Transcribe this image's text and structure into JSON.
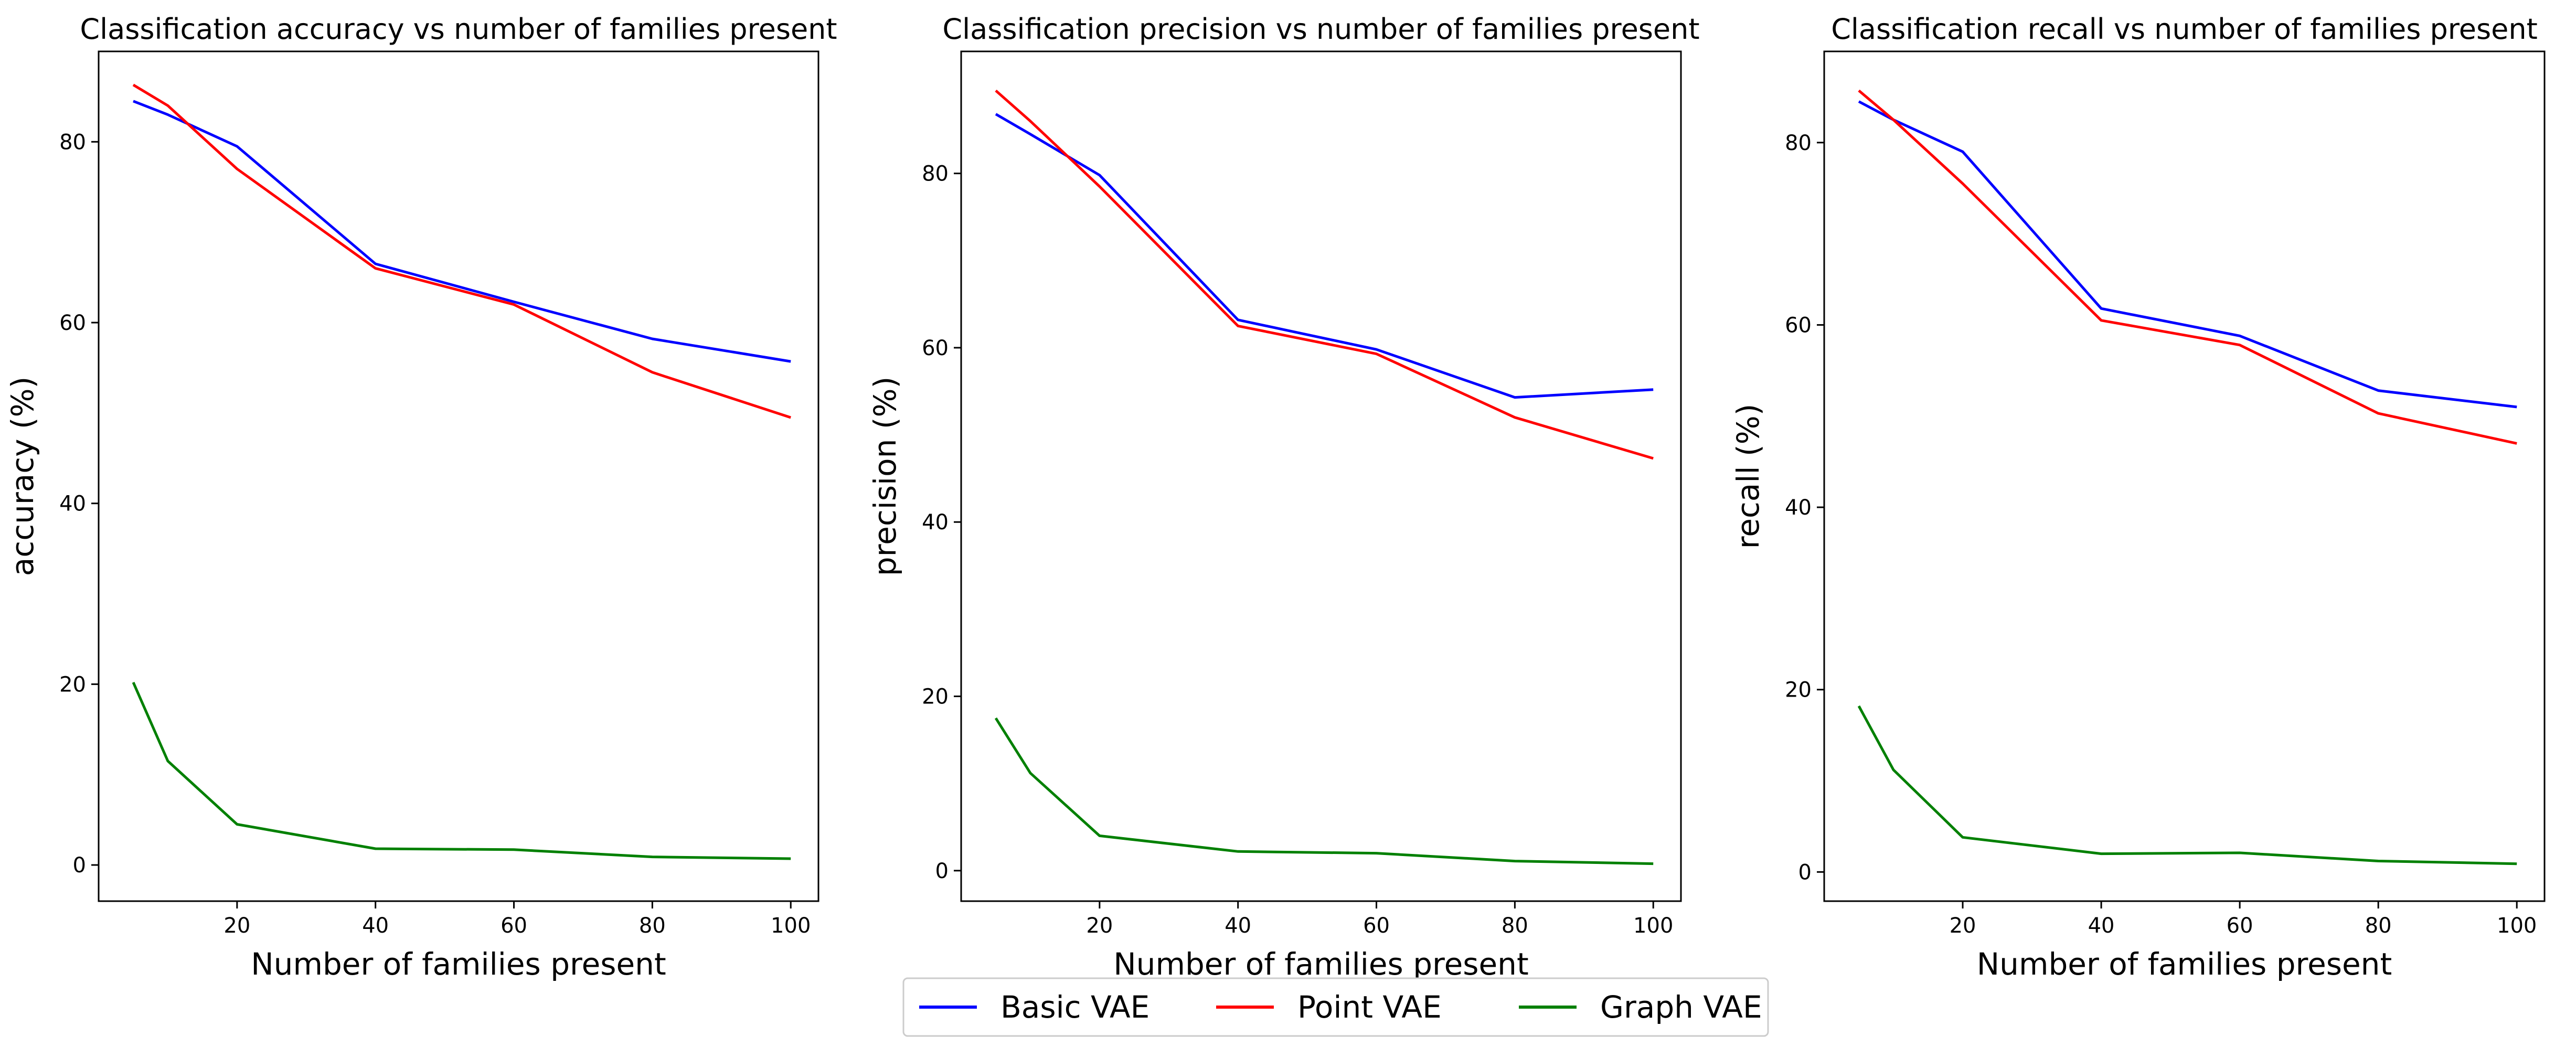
{
  "legend": {
    "placement": "bottom-center",
    "entries": [
      {
        "label": "Basic VAE",
        "color": "#0000ff"
      },
      {
        "label": "Point VAE",
        "color": "#ff0000"
      },
      {
        "label": "Graph VAE",
        "color": "#008000"
      }
    ]
  },
  "chart_data": [
    {
      "type": "line",
      "title": "Classification accuracy vs number of families present",
      "xlabel": "Number of families present",
      "ylabel": "accuracy (%)",
      "xlim": [
        0,
        104
      ],
      "ylim": [
        -4,
        90
      ],
      "xticks": [
        20,
        40,
        60,
        80,
        100
      ],
      "yticks": [
        0,
        20,
        40,
        60,
        80
      ],
      "x": [
        5,
        10,
        20,
        40,
        60,
        80,
        100
      ],
      "series": [
        {
          "name": "Basic VAE",
          "color": "#0000ff",
          "values": [
            84.5,
            83.0,
            79.5,
            66.5,
            62.3,
            58.2,
            55.7
          ]
        },
        {
          "name": "Point VAE",
          "color": "#ff0000",
          "values": [
            86.3,
            84.0,
            77.0,
            66.0,
            62.0,
            54.5,
            49.5
          ]
        },
        {
          "name": "Graph VAE",
          "color": "#008000",
          "values": [
            20.2,
            11.5,
            4.5,
            1.8,
            1.7,
            0.9,
            0.7
          ]
        }
      ],
      "grid": false
    },
    {
      "type": "line",
      "title": "Classification precision vs number of families present",
      "xlabel": "Number of families present",
      "ylabel": "precision (%)",
      "xlim": [
        0,
        104
      ],
      "ylim": [
        -3.5,
        94
      ],
      "xticks": [
        20,
        40,
        60,
        80,
        100
      ],
      "yticks": [
        0,
        20,
        40,
        60,
        80
      ],
      "x": [
        5,
        10,
        20,
        40,
        60,
        80,
        100
      ],
      "series": [
        {
          "name": "Basic VAE",
          "color": "#0000ff",
          "values": [
            86.8,
            84.5,
            79.8,
            63.2,
            59.8,
            54.3,
            55.2
          ]
        },
        {
          "name": "Point VAE",
          "color": "#ff0000",
          "values": [
            89.5,
            86.0,
            78.5,
            62.5,
            59.3,
            52.0,
            47.3
          ]
        },
        {
          "name": "Graph VAE",
          "color": "#008000",
          "values": [
            17.5,
            11.2,
            4.0,
            2.2,
            2.0,
            1.1,
            0.8
          ]
        }
      ],
      "grid": false
    },
    {
      "type": "line",
      "title": "Classification recall vs number of families present",
      "xlabel": "Number of families present",
      "ylabel": "recall (%)",
      "xlim": [
        0,
        104
      ],
      "ylim": [
        -3.2,
        90
      ],
      "xticks": [
        20,
        40,
        60,
        80,
        100
      ],
      "yticks": [
        0,
        20,
        40,
        60,
        80
      ],
      "x": [
        5,
        10,
        20,
        40,
        60,
        80,
        100
      ],
      "series": [
        {
          "name": "Basic VAE",
          "color": "#0000ff",
          "values": [
            84.5,
            82.5,
            79.0,
            61.8,
            58.8,
            52.8,
            51.0
          ]
        },
        {
          "name": "Point VAE",
          "color": "#ff0000",
          "values": [
            85.7,
            82.5,
            75.5,
            60.5,
            57.8,
            50.3,
            47.0
          ]
        },
        {
          "name": "Graph VAE",
          "color": "#008000",
          "values": [
            18.2,
            11.2,
            3.8,
            2.0,
            2.1,
            1.2,
            0.9
          ]
        }
      ],
      "grid": false
    }
  ]
}
